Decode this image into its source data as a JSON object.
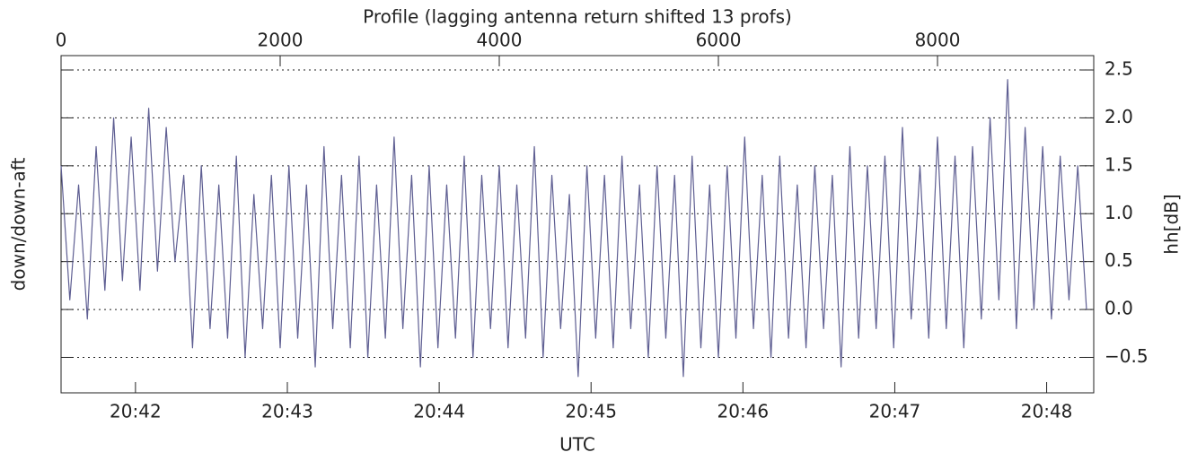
{
  "chart_data": {
    "type": "line",
    "title": "Profile (lagging antenna return shifted 13 profs)",
    "x_label": "UTC",
    "y_label": "down/down-aft",
    "y2_label": "hh[dB]",
    "color": "#5e5e92",
    "grid": true,
    "xlim": [
      0,
      9426
    ],
    "xticks": [
      0,
      2000,
      4000,
      6000,
      8000
    ],
    "x2lim": [
      1241.51,
      1248.31
    ],
    "x2ticks": [
      {
        "value": 1242,
        "label": "20:42"
      },
      {
        "value": 1243,
        "label": "20:43"
      },
      {
        "value": 1244,
        "label": "20:44"
      },
      {
        "value": 1245,
        "label": "20:45"
      },
      {
        "value": 1246,
        "label": "20:46"
      },
      {
        "value": 1247,
        "label": "20:47"
      },
      {
        "value": 1248,
        "label": "20:48"
      }
    ],
    "ylim": [
      -0.87,
      2.65
    ],
    "yticks": [
      {
        "value": -0.5,
        "label": "−0.5"
      },
      {
        "value": 0,
        "label": "0.0"
      },
      {
        "value": 0.5,
        "label": "0.5"
      },
      {
        "value": 1,
        "label": "1.0"
      },
      {
        "value": 1.5,
        "label": "1.5"
      },
      {
        "value": 2,
        "label": "2.0"
      },
      {
        "value": 2.5,
        "label": "2.5"
      }
    ],
    "x": [
      0,
      80,
      160,
      240,
      320,
      400,
      480,
      560,
      640,
      720,
      800,
      880,
      960,
      1040,
      1120,
      1200,
      1280,
      1360,
      1440,
      1520,
      1600,
      1680,
      1760,
      1840,
      1920,
      2000,
      2080,
      2160,
      2240,
      2320,
      2400,
      2480,
      2560,
      2640,
      2720,
      2800,
      2880,
      2960,
      3040,
      3120,
      3200,
      3280,
      3360,
      3440,
      3520,
      3600,
      3680,
      3760,
      3840,
      3920,
      4000,
      4080,
      4160,
      4240,
      4320,
      4400,
      4480,
      4560,
      4640,
      4720,
      4800,
      4880,
      4960,
      5040,
      5120,
      5200,
      5280,
      5360,
      5440,
      5520,
      5600,
      5680,
      5760,
      5840,
      5920,
      6000,
      6080,
      6160,
      6240,
      6320,
      6400,
      6480,
      6560,
      6640,
      6720,
      6800,
      6880,
      6960,
      7040,
      7120,
      7200,
      7280,
      7360,
      7440,
      7520,
      7600,
      7680,
      7760,
      7840,
      7920,
      8000,
      8080,
      8160,
      8240,
      8320,
      8400,
      8480,
      8560,
      8640,
      8720,
      8800,
      8880,
      8960,
      9040,
      9120,
      9200,
      9280,
      9360
    ],
    "values": [
      1.5,
      0.1,
      1.3,
      -0.1,
      1.7,
      0.2,
      2.0,
      0.3,
      1.8,
      0.2,
      2.1,
      0.4,
      1.9,
      0.5,
      1.4,
      -0.4,
      1.5,
      -0.2,
      1.3,
      -0.3,
      1.6,
      -0.5,
      1.2,
      -0.2,
      1.4,
      -0.4,
      1.5,
      -0.3,
      1.3,
      -0.6,
      1.7,
      -0.2,
      1.4,
      -0.4,
      1.6,
      -0.5,
      1.3,
      -0.3,
      1.8,
      -0.2,
      1.4,
      -0.6,
      1.5,
      -0.4,
      1.3,
      -0.3,
      1.6,
      -0.5,
      1.4,
      -0.2,
      1.5,
      -0.4,
      1.3,
      -0.3,
      1.7,
      -0.5,
      1.4,
      -0.2,
      1.2,
      -0.7,
      1.5,
      -0.3,
      1.4,
      -0.4,
      1.6,
      -0.2,
      1.3,
      -0.5,
      1.5,
      -0.3,
      1.4,
      -0.7,
      1.6,
      -0.4,
      1.3,
      -0.5,
      1.5,
      -0.3,
      1.8,
      -0.2,
      1.4,
      -0.5,
      1.6,
      -0.3,
      1.3,
      -0.4,
      1.5,
      -0.2,
      1.4,
      -0.6,
      1.7,
      -0.3,
      1.5,
      -0.2,
      1.6,
      -0.4,
      1.9,
      -0.1,
      1.5,
      -0.3,
      1.8,
      -0.2,
      1.6,
      -0.4,
      1.7,
      -0.1,
      2.0,
      0.1,
      2.4,
      -0.2,
      1.9,
      0.0,
      1.7,
      -0.1,
      1.6,
      0.1,
      1.5,
      0.0
    ]
  }
}
